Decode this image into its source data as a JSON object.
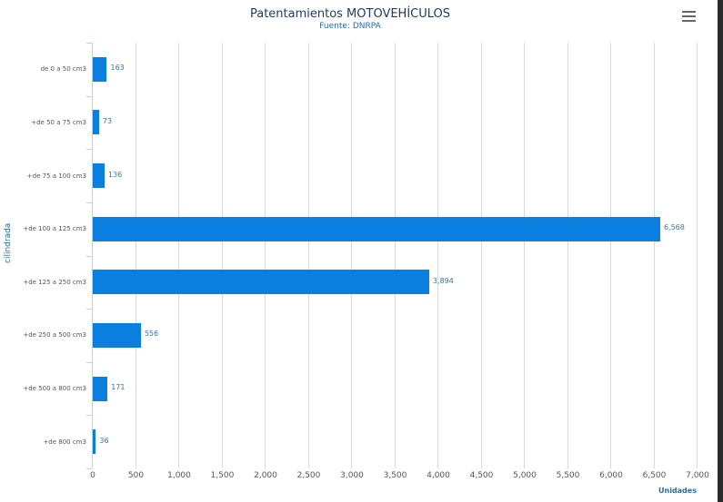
{
  "header": {
    "title": "Patentamientos MOTOVEHÍCULOS",
    "subtitle": "Fuente: DNRPA",
    "menu_icon": "hamburger-menu-icon"
  },
  "axes": {
    "x_title": "Unidades",
    "y_title": "cilindrada",
    "x_ticks": [
      "0",
      "500",
      "1,000",
      "1,500",
      "2,000",
      "2,500",
      "3,000",
      "3,500",
      "4,000",
      "4,500",
      "5,000",
      "5,500",
      "6,000",
      "6,500",
      "7,000"
    ]
  },
  "bars": [
    {
      "category": "de 0 a 50 cm3",
      "label": "163"
    },
    {
      "category": "+de 50 a 75 cm3",
      "label": "73"
    },
    {
      "category": "+de 75 a 100 cm3",
      "label": "136"
    },
    {
      "category": "+de 100 a 125 cm3",
      "label": "6,568"
    },
    {
      "category": "+de 125 a 250 cm3",
      "label": "3,894"
    },
    {
      "category": "+de 250 a 500 cm3",
      "label": "556"
    },
    {
      "category": "+de 500 a 800 cm3",
      "label": "171"
    },
    {
      "category": "+de 800 cm3",
      "label": "36"
    }
  ],
  "colors": {
    "bar": "#0a7fe0",
    "title": "#1f3b5c",
    "accent": "#2a6aa8"
  },
  "chart_data": {
    "type": "bar",
    "orientation": "horizontal",
    "title": "Patentamientos MOTOVEHÍCULOS",
    "subtitle": "Fuente: DNRPA",
    "categories": [
      "de 0 a 50 cm3",
      "+de 50 a 75 cm3",
      "+de 75 a 100 cm3",
      "+de 100 a 125 cm3",
      "+de 125 a 250 cm3",
      "+de 250 a 500 cm3",
      "+de 500 a 800 cm3",
      "+de 800 cm3"
    ],
    "values": [
      163,
      73,
      136,
      6568,
      3894,
      556,
      171,
      36
    ],
    "xlabel": "Unidades",
    "ylabel": "cilindrada",
    "xlim": [
      0,
      7000
    ],
    "x_tick_interval": 500,
    "grid": true,
    "data_labels": true,
    "legend": null
  }
}
